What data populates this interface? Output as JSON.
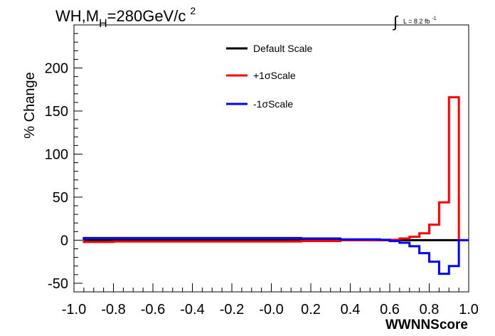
{
  "chart_data": {
    "type": "line",
    "title": {
      "prefix": "WH,M",
      "subscript": "H",
      "main": "=280GeV/c",
      "superscript": "2"
    },
    "luminosity": {
      "symbol": "∫",
      "text": "L = 8.2 fb",
      "superscript": "-1"
    },
    "xlabel": "WWNNScore",
    "ylabel": "% Change",
    "xlim": [
      -1.0,
      1.0
    ],
    "ylim": [
      -60,
      250
    ],
    "x_ticks": [
      "-1.0",
      "-0.8",
      "-0.6",
      "-0.4",
      "-0.2",
      "-0.0",
      "0.2",
      "0.4",
      "0.6",
      "0.8",
      "1.0"
    ],
    "x_tick_values": [
      -1.0,
      -0.8,
      -0.6,
      -0.4,
      -0.2,
      0.0,
      0.2,
      0.4,
      0.6,
      0.8,
      1.0
    ],
    "y_ticks": [
      "-50",
      "0",
      "50",
      "100",
      "150",
      "200"
    ],
    "y_tick_values": [
      -50,
      0,
      50,
      100,
      150,
      200
    ],
    "bin_edges": [
      -0.95,
      -0.8,
      0.15,
      0.35,
      0.55,
      0.6,
      0.65,
      0.7,
      0.75,
      0.8,
      0.85,
      0.9,
      0.95
    ],
    "legend_position": "top-center",
    "series": [
      {
        "name": "Default Scale",
        "color": "#000000",
        "values": [
          0,
          0,
          0,
          0,
          0,
          0,
          0,
          0,
          0,
          0,
          0,
          0
        ]
      },
      {
        "name": "+1σScale",
        "color": "#ff0000",
        "values": [
          -2,
          -1.5,
          -1,
          0,
          0,
          0.5,
          2,
          4,
          8,
          18,
          44,
          166
        ]
      },
      {
        "name": "-1σScale",
        "color": "#0000ff",
        "values": [
          2.5,
          2.5,
          2,
          1,
          0.5,
          -1,
          -3,
          -7,
          -15,
          -25,
          -39,
          -30
        ]
      }
    ]
  }
}
